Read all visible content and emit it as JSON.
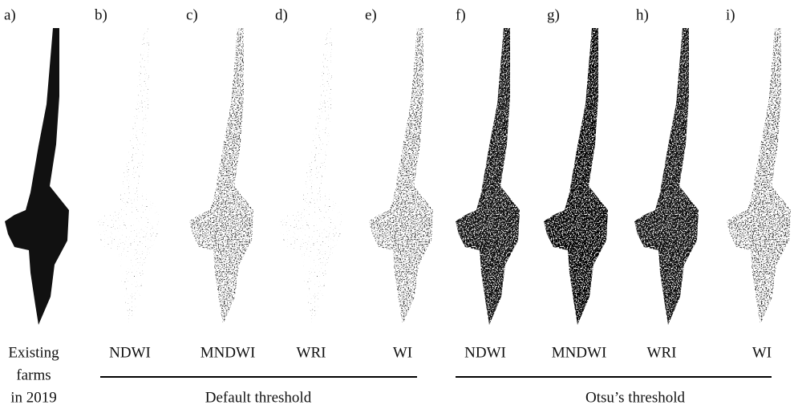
{
  "panels": [
    {
      "letter": "a)",
      "label": [
        "Existing",
        "farms",
        "in 2019"
      ]
    },
    {
      "letter": "b)",
      "label": [
        "NDWI"
      ]
    },
    {
      "letter": "c)",
      "label": [
        "MNDWI"
      ]
    },
    {
      "letter": "d)",
      "label": [
        "WRI"
      ]
    },
    {
      "letter": "e)",
      "label": [
        "WI"
      ]
    },
    {
      "letter": "f)",
      "label": [
        "NDWI"
      ]
    },
    {
      "letter": "g)",
      "label": [
        "MNDWI"
      ]
    },
    {
      "letter": "h)",
      "label": [
        "WRI"
      ]
    },
    {
      "letter": "i)",
      "label": [
        "WI"
      ]
    }
  ],
  "groups": [
    "Default threshold",
    "Otsu’s threshold"
  ]
}
